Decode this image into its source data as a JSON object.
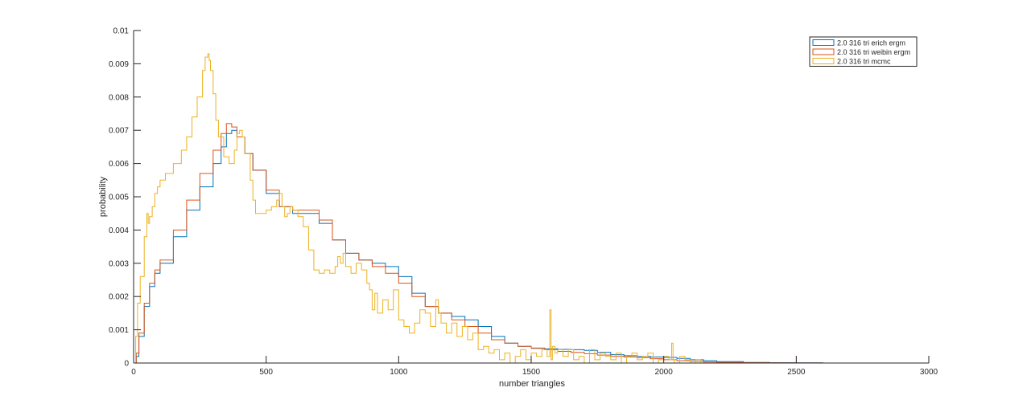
{
  "chart_data": {
    "type": "line",
    "title": "",
    "xlabel": "number triangles",
    "ylabel": "probability",
    "xlim": [
      0,
      3000
    ],
    "ylim": [
      0,
      0.01
    ],
    "xticks": [
      "0",
      "500",
      "1000",
      "1500",
      "2000",
      "2500",
      "3000"
    ],
    "yticks": [
      "0",
      "0.001",
      "0.002",
      "0.003",
      "0.004",
      "0.005",
      "0.006",
      "0.007",
      "0.008",
      "0.009",
      "0.01"
    ],
    "grid": false,
    "legend_position": "top-right",
    "series": [
      {
        "name": "2.0 316 tri erich ergm",
        "color": "#0072BD",
        "x": [
          0,
          10,
          20,
          40,
          60,
          80,
          100,
          150,
          200,
          250,
          300,
          330,
          350,
          370,
          390,
          420,
          450,
          500,
          550,
          600,
          650,
          700,
          750,
          800,
          850,
          900,
          950,
          1000,
          1050,
          1100,
          1150,
          1200,
          1250,
          1300,
          1350,
          1400,
          1450,
          1500,
          1550,
          1600,
          1650,
          1700,
          1750,
          1800,
          1850,
          1900,
          1950,
          2000,
          2050,
          2100,
          2150,
          2200,
          2300,
          2400,
          2500,
          2600
        ],
        "y": [
          0,
          0.0002,
          0.0008,
          0.0017,
          0.0023,
          0.0027,
          0.003,
          0.0038,
          0.0046,
          0.0053,
          0.006,
          0.0065,
          0.0069,
          0.007,
          0.0068,
          0.0063,
          0.0058,
          0.0051,
          0.0047,
          0.0045,
          0.0045,
          0.0042,
          0.0037,
          0.0033,
          0.0031,
          0.003,
          0.0029,
          0.0026,
          0.0021,
          0.0017,
          0.0015,
          0.0014,
          0.0013,
          0.0011,
          0.0008,
          0.0006,
          0.0005,
          0.00045,
          0.00043,
          0.00041,
          0.0004,
          0.00038,
          0.00032,
          0.00025,
          0.00022,
          0.0002,
          0.00018,
          0.00017,
          0.00014,
          0.0001,
          7e-05,
          4e-05,
          2e-05,
          1e-05,
          5e-06,
          0
        ]
      },
      {
        "name": "2.0 316 tri weibin ergm",
        "color": "#D95319",
        "x": [
          0,
          10,
          20,
          40,
          60,
          80,
          100,
          150,
          200,
          250,
          300,
          330,
          350,
          370,
          390,
          420,
          450,
          500,
          550,
          600,
          650,
          700,
          750,
          800,
          850,
          900,
          950,
          1000,
          1050,
          1100,
          1150,
          1200,
          1250,
          1300,
          1350,
          1400,
          1450,
          1500,
          1550,
          1600,
          1650,
          1700,
          1750,
          1800,
          1850,
          1900,
          1950,
          2000,
          2050,
          2100,
          2150,
          2200,
          2300,
          2400,
          2500,
          2600
        ],
        "y": [
          0,
          0.0003,
          0.0009,
          0.0018,
          0.0024,
          0.0028,
          0.0031,
          0.004,
          0.0049,
          0.0057,
          0.0064,
          0.0069,
          0.0072,
          0.0071,
          0.0068,
          0.0063,
          0.0058,
          0.0052,
          0.0047,
          0.0046,
          0.0046,
          0.0043,
          0.0037,
          0.0033,
          0.0031,
          0.0029,
          0.0027,
          0.0024,
          0.002,
          0.0017,
          0.0015,
          0.0013,
          0.0011,
          0.0009,
          0.0007,
          0.0006,
          0.0005,
          0.00044,
          0.0004,
          0.00035,
          0.00032,
          0.00028,
          0.00024,
          0.0002,
          0.00018,
          0.00016,
          0.00013,
          0.0001,
          7e-05,
          5e-05,
          3e-05,
          2e-05,
          1e-05,
          5e-06,
          2e-06,
          0
        ]
      },
      {
        "name": "2.0 316 tri mcmc",
        "color": "#EDB120",
        "x": [
          0,
          8,
          15,
          25,
          40,
          50,
          55,
          60,
          70,
          80,
          90,
          100,
          120,
          150,
          180,
          200,
          220,
          240,
          260,
          270,
          280,
          285,
          290,
          300,
          310,
          320,
          340,
          360,
          380,
          390,
          400,
          410,
          420,
          440,
          450,
          460,
          480,
          500,
          520,
          540,
          550,
          560,
          570,
          580,
          590,
          600,
          620,
          640,
          660,
          680,
          700,
          720,
          740,
          760,
          770,
          780,
          790,
          800,
          820,
          840,
          860,
          880,
          890,
          900,
          910,
          920,
          940,
          960,
          980,
          1000,
          1020,
          1040,
          1060,
          1080,
          1100,
          1120,
          1140,
          1150,
          1160,
          1180,
          1200,
          1220,
          1240,
          1260,
          1280,
          1300,
          1320,
          1340,
          1360,
          1380,
          1400,
          1420,
          1440,
          1460,
          1480,
          1500,
          1520,
          1540,
          1560,
          1570,
          1575,
          1580,
          1590,
          1600,
          1620,
          1640,
          1660,
          1680,
          1700,
          1720,
          1740,
          1760,
          1780,
          1800,
          1820,
          1840,
          1860,
          1880,
          1900,
          1920,
          1940,
          1960,
          1980,
          2000,
          2020,
          2030,
          2035,
          2040,
          2060,
          2080,
          2100,
          2120,
          2140,
          2160
        ],
        "y": [
          0,
          0.0008,
          0.0018,
          0.0026,
          0.0038,
          0.0045,
          0.0042,
          0.0044,
          0.0047,
          0.0051,
          0.0053,
          0.0055,
          0.0057,
          0.006,
          0.0064,
          0.0068,
          0.0074,
          0.008,
          0.0088,
          0.0092,
          0.0093,
          0.0091,
          0.0088,
          0.0081,
          0.0073,
          0.0068,
          0.0062,
          0.006,
          0.0064,
          0.0069,
          0.007,
          0.0068,
          0.0063,
          0.0055,
          0.0049,
          0.0045,
          0.0045,
          0.0046,
          0.0047,
          0.0049,
          0.0051,
          0.0047,
          0.0044,
          0.0045,
          0.0047,
          0.0046,
          0.0044,
          0.0041,
          0.0034,
          0.0028,
          0.0027,
          0.0028,
          0.0027,
          0.0029,
          0.0032,
          0.003,
          0.0033,
          0.0029,
          0.0027,
          0.003,
          0.0028,
          0.0024,
          0.0022,
          0.0016,
          0.0021,
          0.0015,
          0.0019,
          0.0016,
          0.0022,
          0.0013,
          0.0011,
          0.0009,
          0.0012,
          0.0016,
          0.0015,
          0.0011,
          0.0019,
          0.0015,
          0.0012,
          0.0009,
          0.0012,
          0.0008,
          0.0011,
          0.0007,
          0.0009,
          0.0004,
          0.0005,
          0.0003,
          0.0004,
          0.0001,
          0.0003,
          0.0,
          0.0002,
          0.0004,
          0.0001,
          0.0003,
          0.0002,
          0.0004,
          0.0002,
          0.0016,
          0.0001,
          0.0005,
          0.0003,
          0.0004,
          0.0002,
          0.0004,
          0.0001,
          0.0002,
          0.0,
          0.0004,
          0.0001,
          0.0003,
          0.0002,
          0.0001,
          0.0003,
          0.0,
          0.0002,
          0.0003,
          0.0001,
          0.0002,
          0.0003,
          0.0,
          0.0001,
          0.0002,
          0.0001,
          0.0006,
          0.0001,
          0.0,
          0.0002,
          0.0001,
          0.0,
          0.0001,
          0.0,
          0
        ]
      }
    ]
  }
}
